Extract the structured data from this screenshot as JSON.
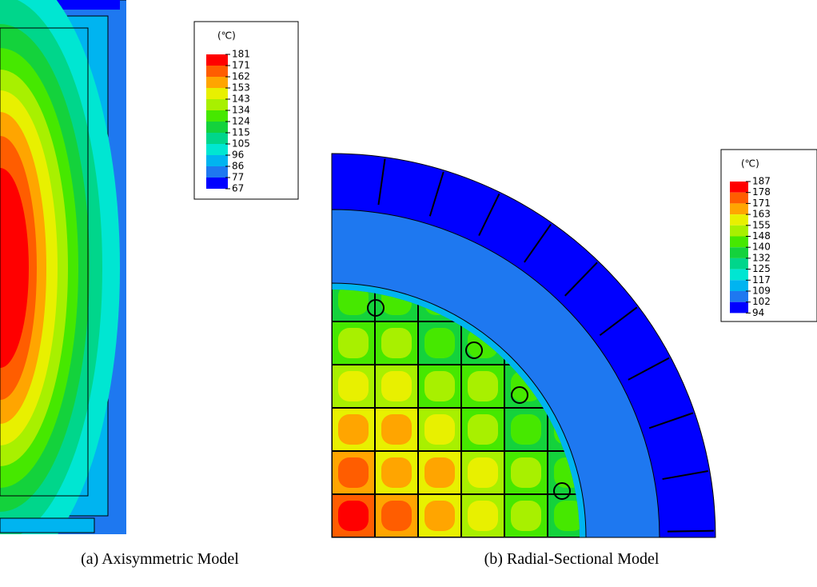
{
  "panels": [
    {
      "caption": "(a) Axisymmetric Model",
      "legend": {
        "unit": "(℃)",
        "labels": [
          181,
          171,
          162,
          153,
          143,
          134,
          124,
          115,
          105,
          96,
          86,
          77,
          67
        ],
        "colors": [
          "#ff0000",
          "#ff5d00",
          "#ffa500",
          "#e8f000",
          "#a8f000",
          "#46e800",
          "#14d23c",
          "#00d68b",
          "#00e6d2",
          "#00b4f0",
          "#1e78f0",
          "#0000ff"
        ]
      }
    },
    {
      "caption": "(b) Radial-Sectional Model",
      "legend": {
        "unit": "(℃)",
        "labels": [
          187,
          178,
          171,
          163,
          155,
          148,
          140,
          132,
          125,
          117,
          109,
          102,
          94
        ],
        "colors": [
          "#ff0000",
          "#ff5d00",
          "#ffa500",
          "#e8f000",
          "#a8f000",
          "#46e800",
          "#14d23c",
          "#00d68b",
          "#00e6d2",
          "#00b4f0",
          "#1e78f0",
          "#0000ff"
        ]
      }
    }
  ]
}
